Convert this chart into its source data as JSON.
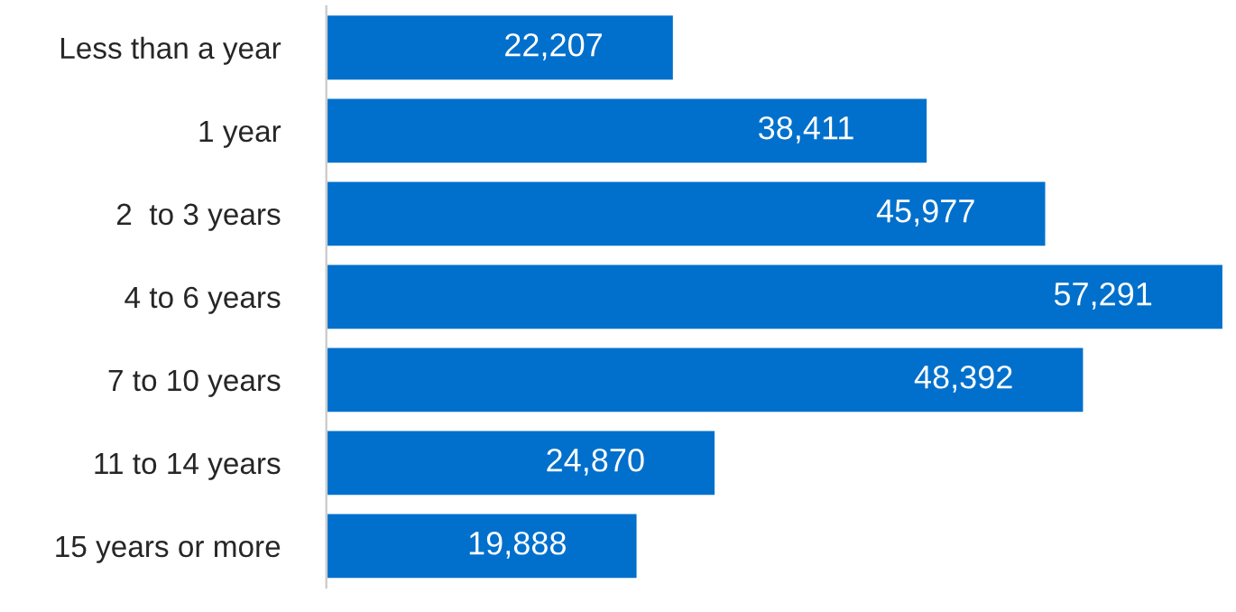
{
  "chart_data": {
    "type": "bar",
    "orientation": "horizontal",
    "categories": [
      "Less than a year",
      "1 year",
      "2  to 3 years",
      "4 to 6 years",
      "7 to 10 years",
      "11 to 14 years",
      "15 years or more"
    ],
    "values": [
      22207,
      38411,
      45977,
      57291,
      48392,
      24870,
      19888
    ],
    "value_labels": [
      "22,207",
      "38,411",
      "45,977",
      "57,291",
      "48,392",
      "24,870",
      "19,888"
    ],
    "color": "#0070cc",
    "grid": false,
    "legend": false
  }
}
